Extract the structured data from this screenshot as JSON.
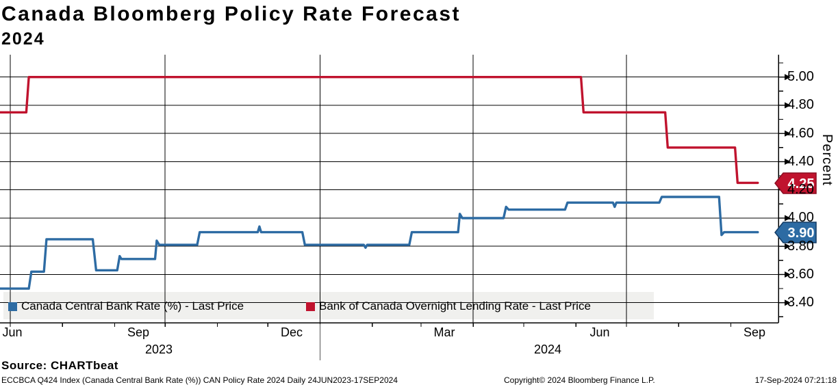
{
  "header": {
    "title": "Canada Bloomberg Policy Rate Forecast",
    "subtitle": "2024"
  },
  "y_axis": {
    "title": "Percent",
    "tick_labels": [
      "5.00",
      "4.80",
      "4.60",
      "4.40",
      "4.20",
      "4.00",
      "3.80",
      "3.60",
      "3.40"
    ]
  },
  "price_badges": [
    {
      "value": "4.25",
      "color": "#c0132e",
      "border": "#8a0c20",
      "series": "Bank of Canada Overnight Lending Rate"
    },
    {
      "value": "3.90",
      "color": "#2d6ba3",
      "border": "#123a63",
      "series": "Canada Central Bank Rate (%)"
    }
  ],
  "legend": {
    "items": [
      {
        "label": "Canada Central Bank Rate (%) - Last Price",
        "color": "#2d6ba3"
      },
      {
        "label": "Bank of Canada Overnight Lending Rate - Last Price",
        "color": "#c0132e"
      }
    ]
  },
  "footer": {
    "source": "Source: CHARTbeat",
    "index_info": "ECCBCA Q424 Index (Canada Central Bank Rate (%)) CAN Policy Rate 2024  Daily 24JUN2023-17SEP2024",
    "copyright": "Copyright© 2024 Bloomberg Finance L.P.",
    "timestamp": "17-Sep-2024 07:21:18"
  },
  "chart_data": {
    "type": "line",
    "title": "Canada Bloomberg Policy Rate Forecast 2024",
    "ylabel": "Percent",
    "grid": true,
    "legend_position": "bottom-left",
    "x_unit": "days since 2023-06-24",
    "x_range_dates": [
      "2023-06-24",
      "2024-09-17"
    ],
    "ylim": [
      3.26,
      5.13
    ],
    "y_ticks_major": [
      3.4,
      3.6,
      3.8,
      4.0,
      4.2,
      4.4,
      4.6,
      4.8,
      5.0
    ],
    "y_ticks_minor": [
      3.3,
      3.5,
      3.7,
      3.9,
      4.1,
      4.3,
      4.5,
      4.7,
      4.9,
      5.1
    ],
    "x_month_ticks_t": [
      7,
      38,
      69,
      99,
      130,
      160,
      191,
      222,
      251,
      282,
      312,
      343,
      373,
      404,
      435
    ],
    "x_quarter_gridlines_t": [
      7,
      99,
      191,
      282,
      373
    ],
    "x_year_separator_t": 191,
    "x_label_positions": [
      {
        "label": "Jun",
        "t": 8
      },
      {
        "label": "Sep",
        "t": 83
      },
      {
        "label": "Dec",
        "t": 174
      },
      {
        "label": "Mar",
        "t": 265
      },
      {
        "label": "Jun",
        "t": 357
      },
      {
        "label": "Sep",
        "t": 449
      }
    ],
    "year_label_positions": [
      {
        "label": "2023",
        "t": 95
      },
      {
        "label": "2024",
        "t": 326
      }
    ],
    "series": [
      {
        "name": "Canada Central Bank Rate (%) - Last Price",
        "color": "#2d6ba3",
        "last_price": 3.9,
        "points": [
          [
            0,
            3.5
          ],
          [
            18,
            3.5
          ],
          [
            19.5,
            3.62
          ],
          [
            27,
            3.62
          ],
          [
            28.5,
            3.85
          ],
          [
            56,
            3.85
          ],
          [
            58,
            3.63
          ],
          [
            70.5,
            3.63
          ],
          [
            72,
            3.73
          ],
          [
            73,
            3.71
          ],
          [
            93,
            3.71
          ],
          [
            94,
            3.84
          ],
          [
            95.5,
            3.81
          ],
          [
            118,
            3.81
          ],
          [
            119.5,
            3.9
          ],
          [
            154,
            3.9
          ],
          [
            155,
            3.94
          ],
          [
            156,
            3.9
          ],
          [
            180.5,
            3.9
          ],
          [
            182,
            3.81
          ],
          [
            217,
            3.81
          ],
          [
            218,
            3.79
          ],
          [
            219,
            3.81
          ],
          [
            244,
            3.81
          ],
          [
            245.5,
            3.9
          ],
          [
            273,
            3.9
          ],
          [
            274,
            4.03
          ],
          [
            275.5,
            4.0
          ],
          [
            300,
            4.0
          ],
          [
            301.5,
            4.08
          ],
          [
            303,
            4.06
          ],
          [
            336.5,
            4.06
          ],
          [
            338,
            4.11
          ],
          [
            365,
            4.11
          ],
          [
            366,
            4.08
          ],
          [
            367,
            4.11
          ],
          [
            392.5,
            4.11
          ],
          [
            394,
            4.15
          ],
          [
            428,
            4.15
          ],
          [
            429.5,
            3.88
          ],
          [
            431,
            3.9
          ],
          [
            451,
            3.9
          ]
        ]
      },
      {
        "name": "Bank of Canada Overnight Lending Rate - Last Price",
        "color": "#c0132e",
        "last_price": 4.25,
        "points": [
          [
            0,
            4.75
          ],
          [
            16.5,
            4.75
          ],
          [
            18,
            5.0
          ],
          [
            346,
            5.0
          ],
          [
            347.5,
            4.75
          ],
          [
            396,
            4.75
          ],
          [
            397.5,
            4.5
          ],
          [
            437.5,
            4.5
          ],
          [
            439,
            4.25
          ],
          [
            451,
            4.25
          ]
        ]
      }
    ]
  }
}
